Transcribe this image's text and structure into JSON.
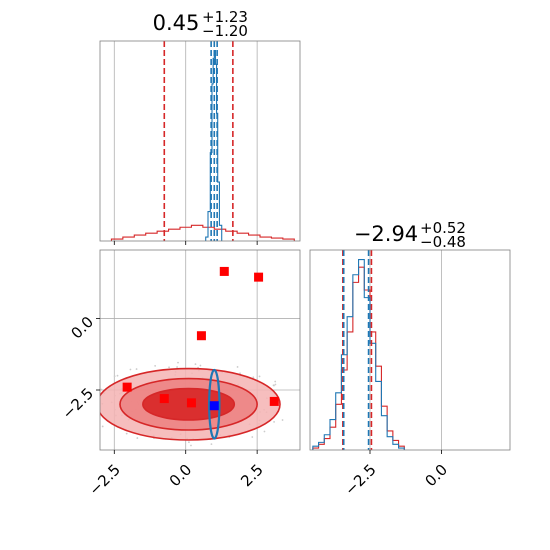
{
  "colors": {
    "red": "#d62728",
    "red_fill": "#e86a6a",
    "red_fill_dark": "#d62020",
    "blue": "#1f77b4",
    "marker_red": "#ff0000",
    "marker_blue": "#0000ff",
    "grid": "#b0b0b0",
    "axis": "#7f7f7f"
  },
  "titles": {
    "top": {
      "main": "0.45",
      "sup": "+1.23",
      "sub": "−1.20"
    },
    "right": {
      "main": "−2.94",
      "sup": "+0.52",
      "sub": "−0.48"
    }
  },
  "chart_data": [
    {
      "type": "histogram",
      "panel": "top-left",
      "title": "0.45^{+1.23}_{−1.20}",
      "xlim": [
        -3.0,
        4.0
      ],
      "x_ticks": [
        "−2.5",
        "0.0",
        "2.5"
      ],
      "grid": true,
      "series": [
        {
          "color": "red",
          "style": "step",
          "bin_edges": [
            -2.6,
            -2.2,
            -1.8,
            -1.4,
            -1.0,
            -0.6,
            -0.2,
            0.2,
            0.6,
            1.0,
            1.4,
            1.8,
            2.2,
            2.6,
            3.0,
            3.4,
            3.8
          ],
          "heights": [
            0.01,
            0.02,
            0.03,
            0.04,
            0.05,
            0.06,
            0.07,
            0.08,
            0.07,
            0.06,
            0.05,
            0.04,
            0.03,
            0.02,
            0.015,
            0.01
          ]
        },
        {
          "color": "blue",
          "style": "step",
          "bin_edges": [
            0.7,
            0.78,
            0.86,
            0.92,
            0.96,
            1.0,
            1.04,
            1.08,
            1.12,
            1.18,
            1.26
          ],
          "heights": [
            0.02,
            0.15,
            0.45,
            0.8,
            0.93,
            0.97,
            0.9,
            0.65,
            0.3,
            0.08
          ]
        }
      ],
      "vlines": [
        {
          "color": "red",
          "x": -0.75
        },
        {
          "color": "red",
          "x": 1.65
        },
        {
          "color": "blue",
          "x": 0.89
        },
        {
          "color": "blue",
          "x": 1.0
        },
        {
          "color": "blue",
          "x": 1.1
        }
      ]
    },
    {
      "type": "contour",
      "panel": "bottom-left",
      "xlim": [
        -3.0,
        4.0
      ],
      "ylim": [
        -4.6,
        2.4
      ],
      "x_ticks": [
        "−2.5",
        "0.0",
        "2.5"
      ],
      "y_ticks": [
        "0.0",
        "−2.5"
      ],
      "grid": true,
      "contours": [
        {
          "color": "red",
          "cx": 0.1,
          "cy": -3.0,
          "rx": [
            3.2,
            2.4,
            1.6
          ],
          "ry": [
            1.25,
            0.9,
            0.55
          ]
        },
        {
          "color": "blue",
          "cx": 1.0,
          "cy": -3.0,
          "rx": [
            0.18
          ],
          "ry": [
            1.2
          ]
        }
      ],
      "markers": [
        {
          "color": "marker_red",
          "x": 1.35,
          "y": 1.65
        },
        {
          "color": "marker_red",
          "x": 2.55,
          "y": 1.45
        },
        {
          "color": "marker_red",
          "x": 0.55,
          "y": -0.6
        },
        {
          "color": "marker_red",
          "x": -2.05,
          "y": -2.4
        },
        {
          "color": "marker_red",
          "x": -0.75,
          "y": -2.8
        },
        {
          "color": "marker_red",
          "x": 0.2,
          "y": -2.95
        },
        {
          "color": "marker_red",
          "x": 3.1,
          "y": -2.9
        },
        {
          "color": "marker_blue",
          "x": 1.0,
          "y": -3.05
        }
      ]
    },
    {
      "type": "histogram",
      "panel": "bottom-right",
      "title": "−2.94^{+0.52}_{−0.48}",
      "xlim": [
        -4.6,
        2.4
      ],
      "x_ticks": [
        "−2.5",
        "0.0"
      ],
      "grid": true,
      "series": [
        {
          "color": "red",
          "style": "step",
          "bin_edges": [
            -4.5,
            -4.3,
            -4.1,
            -3.9,
            -3.7,
            -3.5,
            -3.3,
            -3.1,
            -2.9,
            -2.7,
            -2.5,
            -2.3,
            -2.1,
            -1.9,
            -1.7,
            -1.5,
            -1.3
          ],
          "heights": [
            0.01,
            0.03,
            0.06,
            0.12,
            0.24,
            0.42,
            0.62,
            0.88,
            0.96,
            0.84,
            0.62,
            0.44,
            0.23,
            0.1,
            0.05,
            0.02
          ]
        },
        {
          "color": "blue",
          "style": "step",
          "bin_edges": [
            -4.5,
            -4.3,
            -4.1,
            -3.9,
            -3.7,
            -3.5,
            -3.3,
            -3.1,
            -2.9,
            -2.7,
            -2.5,
            -2.3,
            -2.1,
            -1.9,
            -1.7,
            -1.5,
            -1.3
          ],
          "heights": [
            0.02,
            0.04,
            0.08,
            0.16,
            0.3,
            0.5,
            0.7,
            0.92,
            1.0,
            0.8,
            0.56,
            0.36,
            0.18,
            0.07,
            0.03,
            0.01
          ]
        }
      ],
      "vlines": [
        {
          "color": "red",
          "x": -3.45
        },
        {
          "color": "red",
          "x": -2.45
        },
        {
          "color": "blue",
          "x": -3.42
        },
        {
          "color": "blue",
          "x": -2.55
        }
      ]
    }
  ]
}
